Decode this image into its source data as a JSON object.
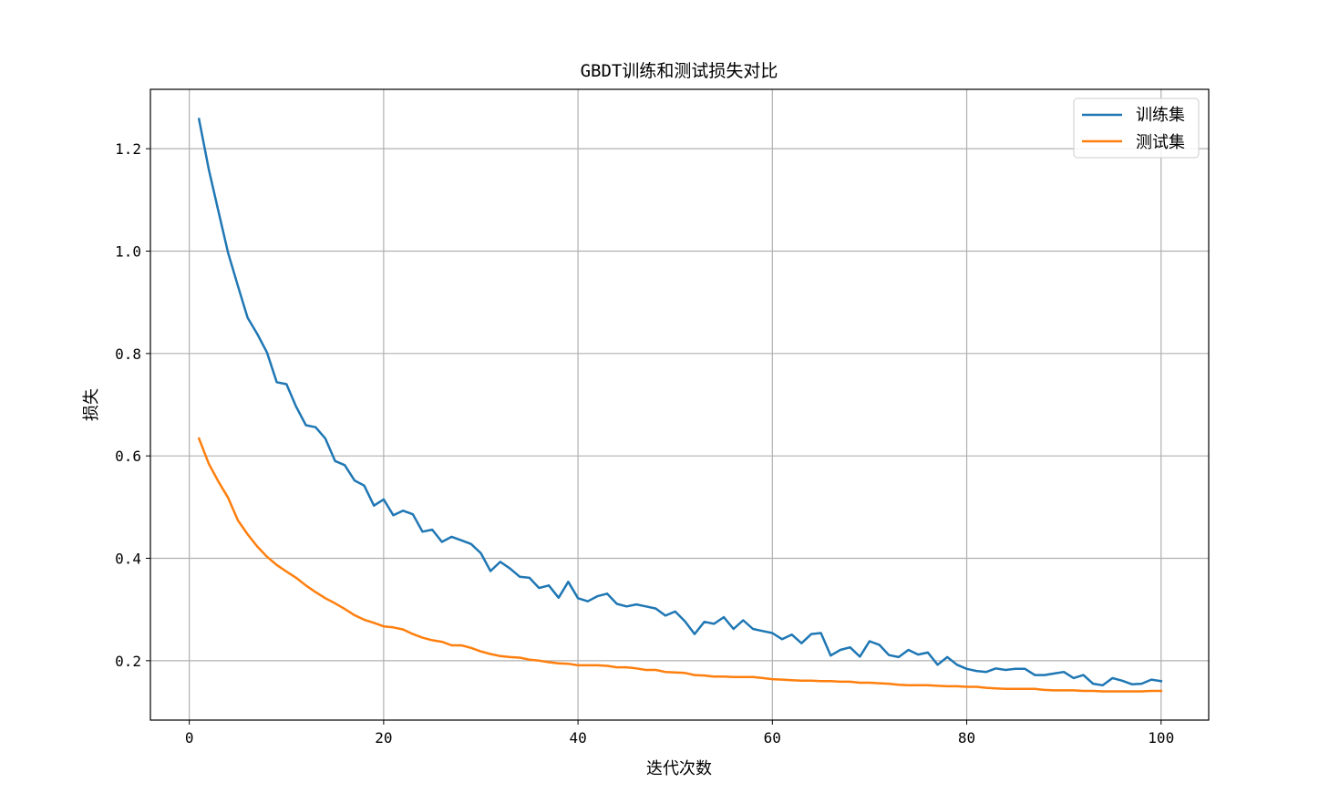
{
  "chart_data": {
    "type": "line",
    "title": "GBDT训练和测试损失对比",
    "xlabel": "迭代次数",
    "ylabel": "损失",
    "xlim": [
      -4,
      104.9
    ],
    "ylim": [
      0.084,
      1.316
    ],
    "xticks": [
      0,
      20,
      40,
      60,
      80,
      100
    ],
    "yticks": [
      0.2,
      0.4,
      0.6,
      0.8,
      1.0,
      1.2
    ],
    "ytick_labels": [
      "0.2",
      "0.4",
      "0.6",
      "0.8",
      "1.0",
      "1.2"
    ],
    "grid": true,
    "legend_position": "top-right",
    "x": [
      1,
      2,
      3,
      4,
      5,
      6,
      7,
      8,
      9,
      10,
      11,
      12,
      13,
      14,
      15,
      16,
      17,
      18,
      19,
      20,
      21,
      22,
      23,
      24,
      25,
      26,
      27,
      28,
      29,
      30,
      31,
      32,
      33,
      34,
      35,
      36,
      37,
      38,
      39,
      40,
      41,
      42,
      43,
      44,
      45,
      46,
      47,
      48,
      49,
      50,
      51,
      52,
      53,
      54,
      55,
      56,
      57,
      58,
      59,
      60,
      61,
      62,
      63,
      64,
      65,
      66,
      67,
      68,
      69,
      70,
      71,
      72,
      73,
      74,
      75,
      76,
      77,
      78,
      79,
      80,
      81,
      82,
      83,
      84,
      85,
      86,
      87,
      88,
      89,
      90,
      91,
      92,
      93,
      94,
      95,
      96,
      97,
      98,
      99,
      100
    ],
    "series": [
      {
        "name": "训练集",
        "color": "#1f77b4",
        "values": [
          1.258,
          1.16,
          1.078,
          0.996,
          0.932,
          0.87,
          0.838,
          0.802,
          0.744,
          0.74,
          0.696,
          0.66,
          0.656,
          0.634,
          0.59,
          0.582,
          0.552,
          0.542,
          0.503,
          0.515,
          0.484,
          0.493,
          0.486,
          0.452,
          0.456,
          0.432,
          0.442,
          0.435,
          0.428,
          0.41,
          0.375,
          0.393,
          0.38,
          0.364,
          0.362,
          0.342,
          0.347,
          0.323,
          0.354,
          0.322,
          0.316,
          0.326,
          0.331,
          0.311,
          0.306,
          0.31,
          0.306,
          0.302,
          0.288,
          0.296,
          0.277,
          0.252,
          0.276,
          0.272,
          0.285,
          0.262,
          0.279,
          0.262,
          0.258,
          0.254,
          0.242,
          0.251,
          0.234,
          0.252,
          0.254,
          0.21,
          0.221,
          0.226,
          0.208,
          0.238,
          0.231,
          0.211,
          0.207,
          0.221,
          0.212,
          0.216,
          0.192,
          0.207,
          0.192,
          0.184,
          0.18,
          0.178,
          0.185,
          0.182,
          0.184,
          0.184,
          0.172,
          0.172,
          0.175,
          0.178,
          0.166,
          0.172,
          0.155,
          0.152,
          0.166,
          0.161,
          0.154,
          0.155,
          0.163,
          0.16
        ]
      },
      {
        "name": "测试集",
        "color": "#ff7f0e",
        "values": [
          0.634,
          0.585,
          0.55,
          0.518,
          0.474,
          0.447,
          0.423,
          0.403,
          0.387,
          0.374,
          0.362,
          0.347,
          0.334,
          0.322,
          0.312,
          0.301,
          0.289,
          0.28,
          0.274,
          0.267,
          0.265,
          0.261,
          0.252,
          0.245,
          0.24,
          0.237,
          0.23,
          0.23,
          0.225,
          0.218,
          0.213,
          0.209,
          0.207,
          0.206,
          0.202,
          0.2,
          0.197,
          0.195,
          0.194,
          0.191,
          0.191,
          0.191,
          0.19,
          0.187,
          0.187,
          0.185,
          0.182,
          0.182,
          0.178,
          0.177,
          0.176,
          0.172,
          0.171,
          0.169,
          0.169,
          0.168,
          0.168,
          0.168,
          0.166,
          0.164,
          0.163,
          0.162,
          0.161,
          0.161,
          0.16,
          0.16,
          0.159,
          0.159,
          0.157,
          0.157,
          0.156,
          0.155,
          0.153,
          0.152,
          0.152,
          0.152,
          0.151,
          0.15,
          0.15,
          0.149,
          0.149,
          0.147,
          0.146,
          0.145,
          0.145,
          0.145,
          0.145,
          0.143,
          0.142,
          0.142,
          0.142,
          0.141,
          0.141,
          0.14,
          0.14,
          0.14,
          0.14,
          0.14,
          0.141,
          0.141
        ]
      }
    ]
  }
}
